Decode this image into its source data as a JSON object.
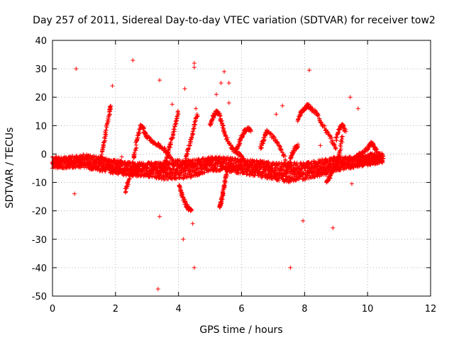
{
  "chart_data": {
    "type": "scatter",
    "title": "Day 257 of 2011, Sidereal Day-to-day VTEC variation (SDTVAR) for receiver tow2",
    "xlabel": "GPS time / hours",
    "ylabel": "SDTVAR / TECUs",
    "xlim": [
      0,
      12
    ],
    "ylim": [
      -50,
      40
    ],
    "xticks": [
      0,
      2,
      4,
      6,
      8,
      10,
      12
    ],
    "yticks": [
      -50,
      -40,
      -30,
      -20,
      -10,
      0,
      10,
      20,
      30,
      40
    ],
    "grid": true,
    "marker": "+",
    "color": "#ff0000",
    "band": {
      "x": [
        0.0,
        0.5,
        1.0,
        1.5,
        2.0,
        2.5,
        3.0,
        3.5,
        4.0,
        4.5,
        5.0,
        5.5,
        6.0,
        6.5,
        7.0,
        7.5,
        8.0,
        8.5,
        9.0,
        9.5,
        10.0,
        10.5
      ],
      "y_low": [
        -5,
        -5,
        -5,
        -6,
        -7,
        -8,
        -8,
        -9,
        -9,
        -8,
        -6,
        -6,
        -7,
        -8,
        -9,
        -10,
        -9,
        -8,
        -6,
        -5,
        -4,
        -3
      ],
      "y_high": [
        -1,
        -1,
        0,
        -1,
        -2,
        -3,
        -3,
        -3,
        -2,
        -2,
        -1,
        -1,
        -2,
        -2,
        -3,
        -3,
        -3,
        -2,
        -1,
        -1,
        0,
        1
      ]
    },
    "arcs": [
      {
        "x": [
          1.5,
          1.6,
          1.7,
          1.8,
          1.85
        ],
        "y": [
          -3,
          2,
          8,
          14,
          17
        ]
      },
      {
        "x": [
          2.3,
          2.4,
          2.5,
          2.6,
          2.7,
          2.8,
          2.9
        ],
        "y": [
          -13,
          -10,
          -5,
          0,
          6,
          10,
          9
        ]
      },
      {
        "x": [
          2.9,
          3.0,
          3.2,
          3.4,
          3.6,
          3.8
        ],
        "y": [
          8,
          6,
          4,
          3,
          1,
          -2
        ]
      },
      {
        "x": [
          3.5,
          3.6,
          3.7,
          3.8,
          3.9,
          4.0
        ],
        "y": [
          -5,
          -2,
          2,
          6,
          10,
          15
        ]
      },
      {
        "x": [
          4.2,
          4.3,
          4.4,
          4.5,
          4.6
        ],
        "y": [
          -3,
          1,
          5,
          10,
          14
        ]
      },
      {
        "x": [
          4.0,
          4.1,
          4.2,
          4.3,
          4.4
        ],
        "y": [
          -11,
          -14,
          -17,
          -19,
          -20
        ]
      },
      {
        "x": [
          5.0,
          5.1,
          5.2,
          5.3,
          5.4,
          5.5,
          5.7,
          5.9,
          6.1
        ],
        "y": [
          10,
          13,
          15,
          14,
          10,
          6,
          2,
          0,
          -2
        ]
      },
      {
        "x": [
          5.3,
          5.35,
          5.4,
          5.45,
          5.5,
          5.6
        ],
        "y": [
          -19,
          -17,
          -14,
          -11,
          -8,
          -5
        ]
      },
      {
        "x": [
          5.8,
          5.9,
          6.0,
          6.1,
          6.2,
          6.3
        ],
        "y": [
          1,
          3,
          6,
          8,
          9,
          8
        ]
      },
      {
        "x": [
          6.6,
          6.7,
          6.8,
          7.0,
          7.2,
          7.4
        ],
        "y": [
          2,
          5,
          8,
          6,
          3,
          -2
        ]
      },
      {
        "x": [
          7.4,
          7.5,
          7.6,
          7.7,
          7.8
        ],
        "y": [
          -7,
          -4,
          0,
          2,
          3
        ]
      },
      {
        "x": [
          7.8,
          7.9,
          8.0,
          8.1,
          8.2,
          8.4,
          8.6,
          8.8,
          9.0
        ],
        "y": [
          12,
          15,
          16,
          17,
          16,
          14,
          10,
          6,
          2
        ]
      },
      {
        "x": [
          8.7,
          8.8,
          8.9,
          9.0,
          9.1,
          9.2
        ],
        "y": [
          -10,
          -8,
          -6,
          -4,
          0,
          6
        ]
      },
      {
        "x": [
          9.0,
          9.1,
          9.2,
          9.3
        ],
        "y": [
          5,
          9,
          10,
          8
        ]
      },
      {
        "x": [
          9.6,
          9.8,
          10.0,
          10.1,
          10.2,
          10.3
        ],
        "y": [
          -1,
          0,
          2,
          4,
          3,
          1
        ]
      }
    ],
    "outliers": [
      {
        "x": 0.75,
        "y": 30
      },
      {
        "x": 0.7,
        "y": -14
      },
      {
        "x": 1.9,
        "y": 24
      },
      {
        "x": 2.55,
        "y": 33
      },
      {
        "x": 3.4,
        "y": 26
      },
      {
        "x": 3.4,
        "y": -22
      },
      {
        "x": 3.35,
        "y": -47.5
      },
      {
        "x": 4.2,
        "y": 23
      },
      {
        "x": 4.15,
        "y": -30
      },
      {
        "x": 4.5,
        "y": 32
      },
      {
        "x": 4.5,
        "y": 30.5
      },
      {
        "x": 4.45,
        "y": -24.5
      },
      {
        "x": 4.5,
        "y": -40
      },
      {
        "x": 5.45,
        "y": 29
      },
      {
        "x": 5.35,
        "y": 25
      },
      {
        "x": 5.6,
        "y": 25
      },
      {
        "x": 5.2,
        "y": 21
      },
      {
        "x": 5.6,
        "y": 18
      },
      {
        "x": 7.55,
        "y": -40
      },
      {
        "x": 7.95,
        "y": -23.5
      },
      {
        "x": 8.15,
        "y": 29.5
      },
      {
        "x": 8.9,
        "y": -26
      },
      {
        "x": 9.45,
        "y": 20
      },
      {
        "x": 9.7,
        "y": 16
      },
      {
        "x": 9.5,
        "y": -10.5
      },
      {
        "x": 3.8,
        "y": 17.5
      },
      {
        "x": 4.55,
        "y": 16
      },
      {
        "x": 2.2,
        "y": -1
      },
      {
        "x": 7.1,
        "y": 14
      },
      {
        "x": 8.5,
        "y": 3
      },
      {
        "x": 7.3,
        "y": 17
      }
    ]
  }
}
